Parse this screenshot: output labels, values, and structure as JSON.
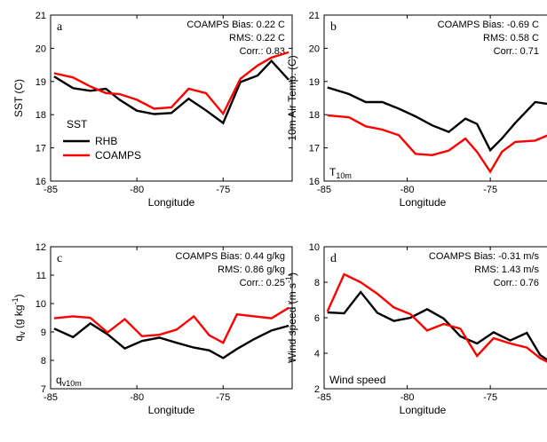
{
  "colors": {
    "RHB": "#000000",
    "COAMPS": "#ff0000"
  },
  "chart_data": [
    {
      "type": "line",
      "panel": "a",
      "xlabel": "Longitude",
      "ylabel": "SST (C)",
      "xlim": [
        -85,
        -71
      ],
      "ylim": [
        16,
        21
      ],
      "xticks": [
        -85,
        -80,
        -75
      ],
      "yticks": [
        16,
        17,
        18,
        19,
        20,
        21
      ],
      "stats": [
        "COAMPS Bias: 0.22 C",
        "RMS: 0.22 C",
        "Corr.: 0.83"
      ],
      "corner_text": "",
      "legend": {
        "title": "SST",
        "position": "lower-left",
        "entries": [
          "RHB",
          "COAMPS"
        ]
      },
      "series": [
        {
          "name": "RHB",
          "x": [
            -84.8,
            -83.7,
            -82.7,
            -81.8,
            -81.0,
            -80.0,
            -79.0,
            -78.0,
            -77.0,
            -76.0,
            -75.0,
            -74.0,
            -73.0,
            -72.2,
            -71.2
          ],
          "values": [
            19.15,
            18.8,
            18.72,
            18.78,
            18.45,
            18.12,
            18.02,
            18.05,
            18.48,
            18.13,
            17.75,
            18.98,
            19.18,
            19.62,
            19.05
          ]
        },
        {
          "name": "COAMPS",
          "x": [
            -84.8,
            -83.7,
            -82.7,
            -81.8,
            -81.0,
            -80.0,
            -79.0,
            -78.0,
            -77.0,
            -76.0,
            -75.0,
            -74.0,
            -73.0,
            -72.2,
            -71.2
          ],
          "values": [
            19.25,
            19.12,
            18.85,
            18.65,
            18.62,
            18.45,
            18.18,
            18.22,
            18.78,
            18.65,
            18.03,
            19.08,
            19.48,
            19.72,
            19.88
          ]
        }
      ]
    },
    {
      "type": "line",
      "panel": "b",
      "xlabel": "Longitude",
      "ylabel": "10m Air Temp. (C)",
      "xlim": [
        -85,
        -71
      ],
      "ylim": [
        16,
        21
      ],
      "xticks": [
        -85,
        -80,
        -75
      ],
      "yticks": [
        16,
        17,
        18,
        19,
        20,
        21
      ],
      "stats": [
        "COAMPS Bias: -0.69 C",
        "RMS: 0.58 C",
        "Corr.: 0.71"
      ],
      "corner_text": "T",
      "corner_sub": "10m",
      "series": [
        {
          "name": "RHB",
          "x": [
            -84.8,
            -83.5,
            -82.5,
            -81.5,
            -80.5,
            -79.5,
            -78.5,
            -77.5,
            -76.5,
            -75.8,
            -75.0,
            -74.3,
            -73.5,
            -72.3,
            -71.2
          ],
          "values": [
            18.82,
            18.62,
            18.38,
            18.38,
            18.18,
            17.95,
            17.68,
            17.48,
            17.88,
            17.72,
            16.93,
            17.28,
            17.75,
            18.38,
            18.3
          ]
        },
        {
          "name": "COAMPS",
          "x": [
            -84.8,
            -83.5,
            -82.5,
            -81.5,
            -80.5,
            -79.5,
            -78.5,
            -77.5,
            -76.5,
            -75.8,
            -75.0,
            -74.3,
            -73.5,
            -72.3,
            -71.2
          ],
          "values": [
            17.98,
            17.92,
            17.65,
            17.55,
            17.38,
            16.82,
            16.78,
            16.92,
            17.28,
            16.88,
            16.28,
            16.88,
            17.18,
            17.22,
            17.45
          ]
        }
      ]
    },
    {
      "type": "line",
      "panel": "c",
      "xlabel": "Longitude",
      "ylabel": "q",
      "ylabel_sub": "v",
      "ylabel_tail": " (g kg",
      "ylabel_sup": "-1",
      "ylabel_end": ")",
      "xlim": [
        -85,
        -71
      ],
      "ylim": [
        7,
        12
      ],
      "xticks": [
        -85,
        -80,
        -75
      ],
      "yticks": [
        7,
        8,
        9,
        10,
        11,
        12
      ],
      "stats": [
        "COAMPS Bias: 0.44 g/kg",
        "RMS: 0.86 g/kg",
        "Corr.: 0.25"
      ],
      "corner_text": "q",
      "corner_sub": "v10m",
      "series": [
        {
          "name": "RHB",
          "x": [
            -84.8,
            -83.7,
            -82.7,
            -81.7,
            -80.7,
            -79.7,
            -78.7,
            -77.7,
            -76.7,
            -75.8,
            -75.0,
            -74.2,
            -73.2,
            -72.2,
            -71.2
          ],
          "values": [
            9.12,
            8.82,
            9.3,
            8.92,
            8.42,
            8.68,
            8.8,
            8.62,
            8.45,
            8.35,
            8.08,
            8.4,
            8.75,
            9.05,
            9.22
          ]
        },
        {
          "name": "COAMPS",
          "x": [
            -84.8,
            -83.7,
            -82.7,
            -81.7,
            -80.7,
            -79.7,
            -78.7,
            -77.7,
            -76.7,
            -75.8,
            -75.0,
            -74.2,
            -73.2,
            -72.2,
            -71.2
          ],
          "values": [
            9.48,
            9.55,
            9.5,
            8.98,
            9.45,
            8.85,
            8.9,
            9.08,
            9.55,
            8.88,
            8.62,
            9.62,
            9.55,
            9.48,
            9.85
          ]
        }
      ]
    },
    {
      "type": "line",
      "panel": "d",
      "xlabel": "Longitude",
      "ylabel": "Wind speed (m s",
      "ylabel_sup": "-1",
      "ylabel_end": ")",
      "xlim": [
        -85,
        -71
      ],
      "ylim": [
        2,
        10
      ],
      "xticks": [
        -85,
        -80,
        -75
      ],
      "yticks": [
        2,
        4,
        6,
        8,
        10
      ],
      "stats": [
        "COAMPS Bias: -0.31 m/s",
        "RMS: 1.43 m/s",
        "Corr.: 0.76"
      ],
      "corner_text": "Wind speed",
      "series": [
        {
          "name": "RHB",
          "x": [
            -84.8,
            -83.8,
            -82.8,
            -81.8,
            -80.8,
            -79.8,
            -78.8,
            -77.8,
            -76.8,
            -75.8,
            -74.8,
            -73.8,
            -72.8,
            -72.0,
            -71.2
          ],
          "values": [
            6.3,
            6.25,
            7.45,
            6.28,
            5.82,
            6.0,
            6.48,
            5.95,
            4.95,
            4.55,
            5.18,
            4.72,
            5.15,
            3.9,
            3.4
          ]
        },
        {
          "name": "COAMPS",
          "x": [
            -84.8,
            -83.8,
            -82.8,
            -81.8,
            -80.8,
            -79.8,
            -78.8,
            -77.8,
            -76.8,
            -75.8,
            -74.8,
            -73.8,
            -72.8,
            -72.0,
            -71.2
          ],
          "values": [
            6.35,
            8.45,
            8.0,
            7.35,
            6.58,
            6.2,
            5.28,
            5.65,
            5.38,
            3.85,
            4.85,
            4.55,
            4.32,
            3.72,
            3.35
          ]
        }
      ]
    }
  ]
}
